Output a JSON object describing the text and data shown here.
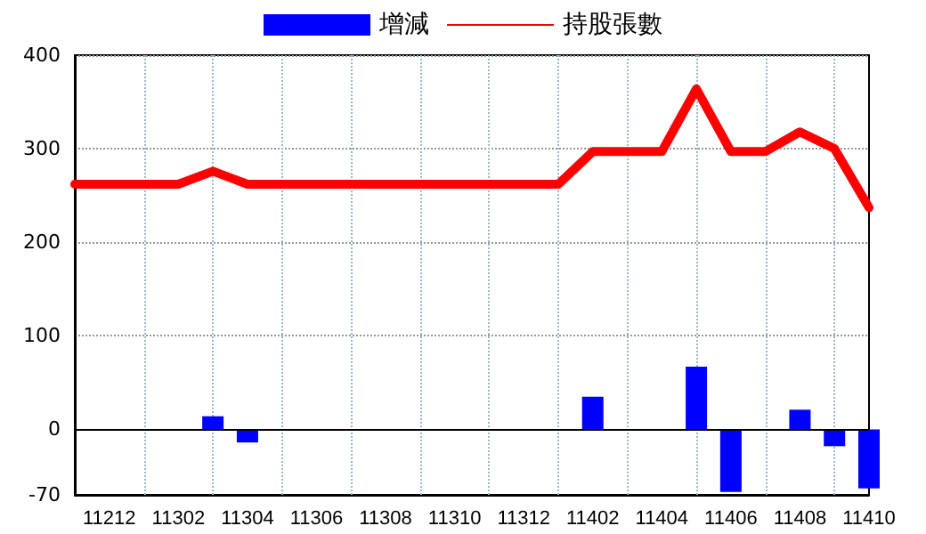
{
  "chart_data": {
    "type": "bar",
    "categories": [
      null,
      "11212",
      null,
      "11302",
      null,
      "11304",
      null,
      "11306",
      null,
      "11308",
      null,
      "11310",
      null,
      "11312",
      null,
      "11402",
      null,
      "11404",
      null,
      "11406",
      null,
      "11408",
      null,
      "11410"
    ],
    "series": [
      {
        "name": "增減",
        "color": "#0000ff",
        "values": [
          null,
          null,
          null,
          null,
          14,
          -14,
          null,
          null,
          null,
          null,
          null,
          null,
          null,
          null,
          null,
          35,
          null,
          null,
          67,
          -67,
          null,
          21,
          -18,
          -63
        ]
      },
      {
        "name": "持股張數",
        "type": "line",
        "color": "#ff0000",
        "values": [
          262,
          262,
          262,
          262,
          276,
          262,
          262,
          262,
          262,
          262,
          262,
          262,
          262,
          262,
          262,
          297,
          297,
          297,
          364,
          297,
          297,
          318,
          300,
          237
        ]
      }
    ],
    "ylim": [
      -70,
      400
    ],
    "yticks": [
      -70,
      0,
      100,
      200,
      300,
      400
    ],
    "ref_lines": [
      {
        "axis": "y",
        "value": 0,
        "color": "#000000"
      }
    ],
    "grid": true,
    "legend": "top",
    "marker": "none",
    "line_style": "solid"
  }
}
